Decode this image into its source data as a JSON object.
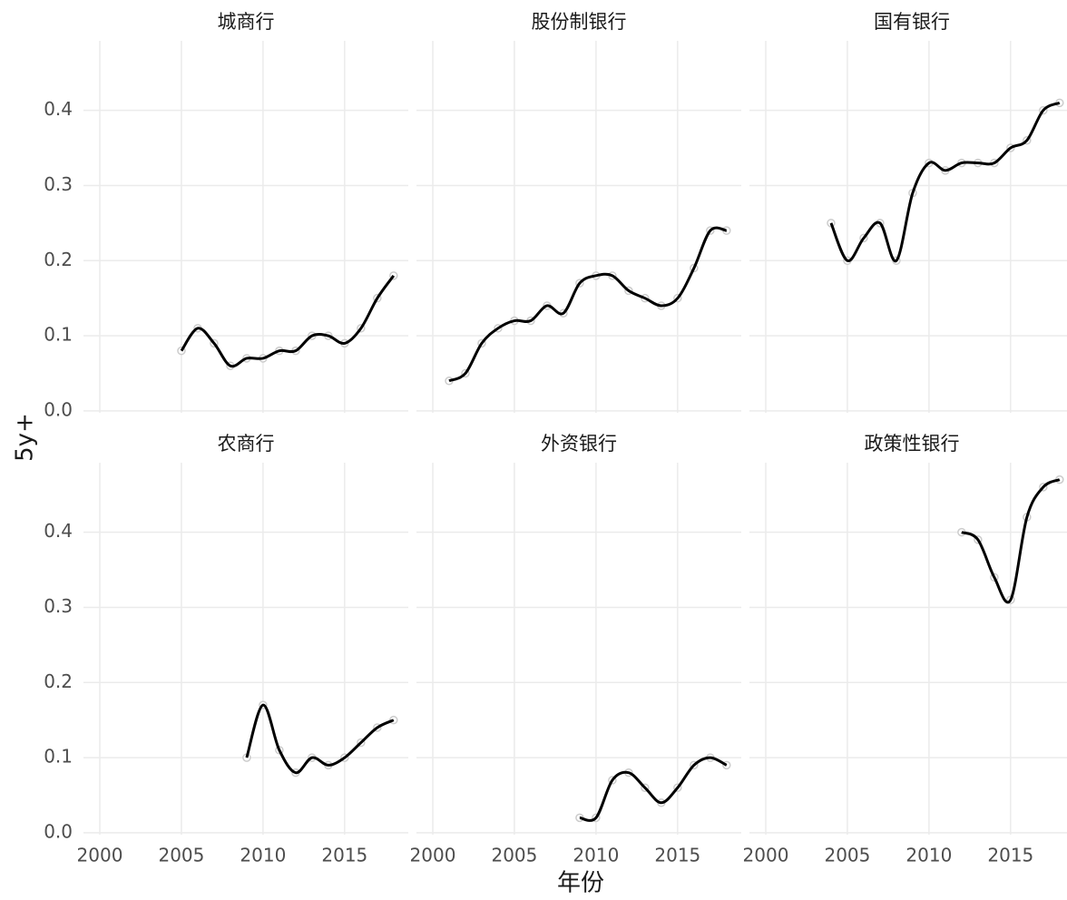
{
  "chart_data": {
    "type": "line",
    "xlabel": "年份",
    "ylabel": "5y+",
    "color": "#000000",
    "point_color": "#cccccc",
    "grid": true,
    "xlim": [
      1999,
      2018.9
    ],
    "ylim": [
      -0.0025,
      0.4925
    ],
    "xticks": [
      2000,
      2005,
      2010,
      2015
    ],
    "yticks": [
      {
        "value": 0,
        "label": "0.0"
      },
      0.1,
      0.2,
      0.3,
      0.4
    ],
    "facets": [
      {
        "title": "城商行",
        "x": [
          2005,
          2006,
          2007,
          2008,
          2009,
          2010,
          2011,
          2012,
          2013,
          2014,
          2015,
          2016,
          2017,
          2018
        ],
        "values": [
          0.08,
          0.11,
          0.09,
          0.06,
          0.07,
          0.07,
          0.08,
          0.08,
          0.1,
          0.1,
          0.09,
          0.11,
          0.15,
          0.18
        ]
      },
      {
        "title": "股份制银行",
        "x": [
          2001,
          2002,
          2003,
          2004,
          2005,
          2006,
          2007,
          2008,
          2009,
          2010,
          2011,
          2012,
          2013,
          2014,
          2015,
          2016,
          2017,
          2018
        ],
        "values": [
          0.04,
          0.05,
          0.09,
          0.11,
          0.12,
          0.12,
          0.14,
          0.13,
          0.17,
          0.18,
          0.18,
          0.16,
          0.15,
          0.14,
          0.15,
          0.19,
          0.24,
          0.24
        ]
      },
      {
        "title": "国有银行",
        "x": [
          2004,
          2005,
          2006,
          2007,
          2008,
          2009,
          2010,
          2011,
          2012,
          2013,
          2014,
          2015,
          2016,
          2017,
          2018
        ],
        "values": [
          0.25,
          0.2,
          0.23,
          0.25,
          0.2,
          0.29,
          0.33,
          0.32,
          0.33,
          0.33,
          0.33,
          0.35,
          0.36,
          0.4,
          0.41
        ]
      },
      {
        "title": "农商行",
        "x": [
          2009,
          2010,
          2011,
          2012,
          2013,
          2014,
          2015,
          2016,
          2017,
          2018
        ],
        "values": [
          0.1,
          0.17,
          0.11,
          0.08,
          0.1,
          0.09,
          0.1,
          0.12,
          0.14,
          0.15
        ]
      },
      {
        "title": "外资银行",
        "x": [
          2009,
          2010,
          2011,
          2012,
          2013,
          2014,
          2015,
          2016,
          2017,
          2018
        ],
        "values": [
          0.02,
          0.02,
          0.07,
          0.08,
          0.06,
          0.04,
          0.06,
          0.09,
          0.1,
          0.09
        ]
      },
      {
        "title": "政策性银行",
        "x": [
          2012,
          2013,
          2014,
          2015,
          2016,
          2017,
          2018
        ],
        "values": [
          0.4,
          0.39,
          0.34,
          0.31,
          0.42,
          0.46,
          0.47
        ]
      }
    ]
  }
}
